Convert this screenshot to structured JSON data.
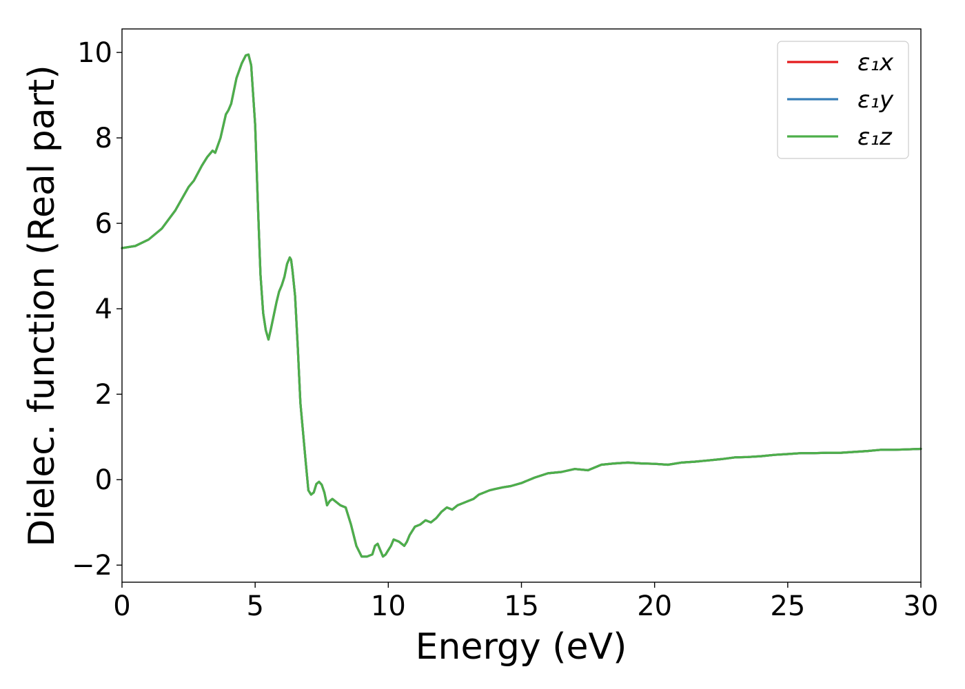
{
  "chart_data": {
    "type": "line",
    "title": "",
    "xlabel": "Energy (eV)",
    "ylabel": "Dielec. function (Real part)",
    "xlim": [
      0,
      30
    ],
    "ylim": [
      -2.4,
      10.55
    ],
    "xticks": [
      {
        "value": 0,
        "label": "0"
      },
      {
        "value": 5,
        "label": "5"
      },
      {
        "value": 10,
        "label": "10"
      },
      {
        "value": 15,
        "label": "15"
      },
      {
        "value": 20,
        "label": "20"
      },
      {
        "value": 25,
        "label": "25"
      },
      {
        "value": 30,
        "label": "30"
      }
    ],
    "yticks": [
      {
        "value": -2,
        "label": "−2"
      },
      {
        "value": 0,
        "label": "0"
      },
      {
        "value": 2,
        "label": "2"
      },
      {
        "value": 4,
        "label": "4"
      },
      {
        "value": 6,
        "label": "6"
      },
      {
        "value": 8,
        "label": "8"
      },
      {
        "value": 10,
        "label": "10"
      }
    ],
    "grid": false,
    "legend_position": "top-right",
    "x": [
      0,
      0.5,
      1.0,
      1.5,
      2.0,
      2.5,
      2.7,
      3.0,
      3.2,
      3.4,
      3.5,
      3.7,
      3.9,
      4.0,
      4.1,
      4.3,
      4.5,
      4.65,
      4.75,
      4.85,
      5.0,
      5.1,
      5.2,
      5.3,
      5.4,
      5.5,
      5.6,
      5.7,
      5.8,
      5.9,
      6.0,
      6.1,
      6.2,
      6.3,
      6.35,
      6.4,
      6.5,
      6.6,
      6.7,
      6.8,
      6.9,
      7.0,
      7.1,
      7.2,
      7.3,
      7.4,
      7.5,
      7.6,
      7.7,
      7.8,
      7.9,
      8.0,
      8.2,
      8.4,
      8.6,
      8.8,
      9.0,
      9.2,
      9.4,
      9.5,
      9.6,
      9.7,
      9.8,
      9.9,
      10.0,
      10.1,
      10.2,
      10.4,
      10.6,
      10.7,
      10.8,
      11.0,
      11.2,
      11.4,
      11.6,
      11.8,
      12.0,
      12.2,
      12.4,
      12.6,
      12.8,
      13.0,
      13.2,
      13.4,
      13.6,
      13.8,
      14.0,
      14.3,
      14.6,
      15.0,
      15.5,
      16.0,
      16.5,
      17.0,
      17.5,
      18.0,
      18.5,
      19.0,
      19.5,
      20.0,
      20.5,
      21.0,
      21.5,
      22.0,
      22.5,
      23.0,
      23.5,
      24.0,
      24.5,
      25.0,
      25.5,
      26.0,
      26.5,
      27.0,
      27.5,
      28.0,
      28.5,
      29.0,
      29.5,
      30.0
    ],
    "series": [
      {
        "name": "ε₁x",
        "color": "#e41a1c",
        "values": [
          5.42,
          5.47,
          5.62,
          5.88,
          6.3,
          6.85,
          7.0,
          7.35,
          7.55,
          7.7,
          7.65,
          8.0,
          8.55,
          8.65,
          8.8,
          9.4,
          9.75,
          9.93,
          9.95,
          9.7,
          8.3,
          6.5,
          4.8,
          3.9,
          3.5,
          3.28,
          3.55,
          3.85,
          4.15,
          4.4,
          4.55,
          4.75,
          5.05,
          5.2,
          5.15,
          4.9,
          4.3,
          3.1,
          1.8,
          1.1,
          0.4,
          -0.25,
          -0.35,
          -0.3,
          -0.1,
          -0.05,
          -0.12,
          -0.3,
          -0.6,
          -0.5,
          -0.45,
          -0.5,
          -0.6,
          -0.65,
          -1.05,
          -1.55,
          -1.8,
          -1.8,
          -1.75,
          -1.55,
          -1.5,
          -1.65,
          -1.8,
          -1.75,
          -1.65,
          -1.55,
          -1.4,
          -1.45,
          -1.55,
          -1.45,
          -1.3,
          -1.1,
          -1.05,
          -0.95,
          -1.0,
          -0.9,
          -0.75,
          -0.65,
          -0.7,
          -0.6,
          -0.55,
          -0.5,
          -0.45,
          -0.35,
          -0.3,
          -0.25,
          -0.22,
          -0.18,
          -0.15,
          -0.08,
          0.05,
          0.15,
          0.18,
          0.25,
          0.22,
          0.35,
          0.38,
          0.4,
          0.38,
          0.37,
          0.35,
          0.4,
          0.42,
          0.45,
          0.48,
          0.52,
          0.53,
          0.55,
          0.58,
          0.6,
          0.62,
          0.62,
          0.63,
          0.63,
          0.65,
          0.67,
          0.7,
          0.7,
          0.71,
          0.72
        ]
      },
      {
        "name": "ε₁y",
        "color": "#377eb8",
        "values": [
          5.42,
          5.47,
          5.62,
          5.88,
          6.3,
          6.85,
          7.0,
          7.35,
          7.55,
          7.7,
          7.65,
          8.0,
          8.55,
          8.65,
          8.8,
          9.4,
          9.75,
          9.93,
          9.95,
          9.7,
          8.3,
          6.5,
          4.8,
          3.9,
          3.5,
          3.28,
          3.55,
          3.85,
          4.15,
          4.4,
          4.55,
          4.75,
          5.05,
          5.2,
          5.15,
          4.9,
          4.3,
          3.1,
          1.8,
          1.1,
          0.4,
          -0.25,
          -0.35,
          -0.3,
          -0.1,
          -0.05,
          -0.12,
          -0.3,
          -0.6,
          -0.5,
          -0.45,
          -0.5,
          -0.6,
          -0.65,
          -1.05,
          -1.55,
          -1.8,
          -1.8,
          -1.75,
          -1.55,
          -1.5,
          -1.65,
          -1.8,
          -1.75,
          -1.65,
          -1.55,
          -1.4,
          -1.45,
          -1.55,
          -1.45,
          -1.3,
          -1.1,
          -1.05,
          -0.95,
          -1.0,
          -0.9,
          -0.75,
          -0.65,
          -0.7,
          -0.6,
          -0.55,
          -0.5,
          -0.45,
          -0.35,
          -0.3,
          -0.25,
          -0.22,
          -0.18,
          -0.15,
          -0.08,
          0.05,
          0.15,
          0.18,
          0.25,
          0.22,
          0.35,
          0.38,
          0.4,
          0.38,
          0.37,
          0.35,
          0.4,
          0.42,
          0.45,
          0.48,
          0.52,
          0.53,
          0.55,
          0.58,
          0.6,
          0.62,
          0.62,
          0.63,
          0.63,
          0.65,
          0.67,
          0.7,
          0.7,
          0.71,
          0.72
        ]
      },
      {
        "name": "ε₁z",
        "color": "#4daf4a",
        "values": [
          5.42,
          5.47,
          5.62,
          5.88,
          6.3,
          6.85,
          7.0,
          7.35,
          7.55,
          7.7,
          7.65,
          8.0,
          8.55,
          8.65,
          8.8,
          9.4,
          9.75,
          9.93,
          9.95,
          9.7,
          8.3,
          6.5,
          4.8,
          3.9,
          3.5,
          3.28,
          3.55,
          3.85,
          4.15,
          4.4,
          4.55,
          4.75,
          5.05,
          5.2,
          5.15,
          4.9,
          4.3,
          3.1,
          1.8,
          1.1,
          0.4,
          -0.25,
          -0.35,
          -0.3,
          -0.1,
          -0.05,
          -0.12,
          -0.3,
          -0.6,
          -0.5,
          -0.45,
          -0.5,
          -0.6,
          -0.65,
          -1.05,
          -1.55,
          -1.8,
          -1.8,
          -1.75,
          -1.55,
          -1.5,
          -1.65,
          -1.8,
          -1.75,
          -1.65,
          -1.55,
          -1.4,
          -1.45,
          -1.55,
          -1.45,
          -1.3,
          -1.1,
          -1.05,
          -0.95,
          -1.0,
          -0.9,
          -0.75,
          -0.65,
          -0.7,
          -0.6,
          -0.55,
          -0.5,
          -0.45,
          -0.35,
          -0.3,
          -0.25,
          -0.22,
          -0.18,
          -0.15,
          -0.08,
          0.05,
          0.15,
          0.18,
          0.25,
          0.22,
          0.35,
          0.38,
          0.4,
          0.38,
          0.37,
          0.35,
          0.4,
          0.42,
          0.45,
          0.48,
          0.52,
          0.53,
          0.55,
          0.58,
          0.6,
          0.62,
          0.62,
          0.63,
          0.63,
          0.65,
          0.67,
          0.7,
          0.7,
          0.71,
          0.72
        ]
      }
    ]
  }
}
